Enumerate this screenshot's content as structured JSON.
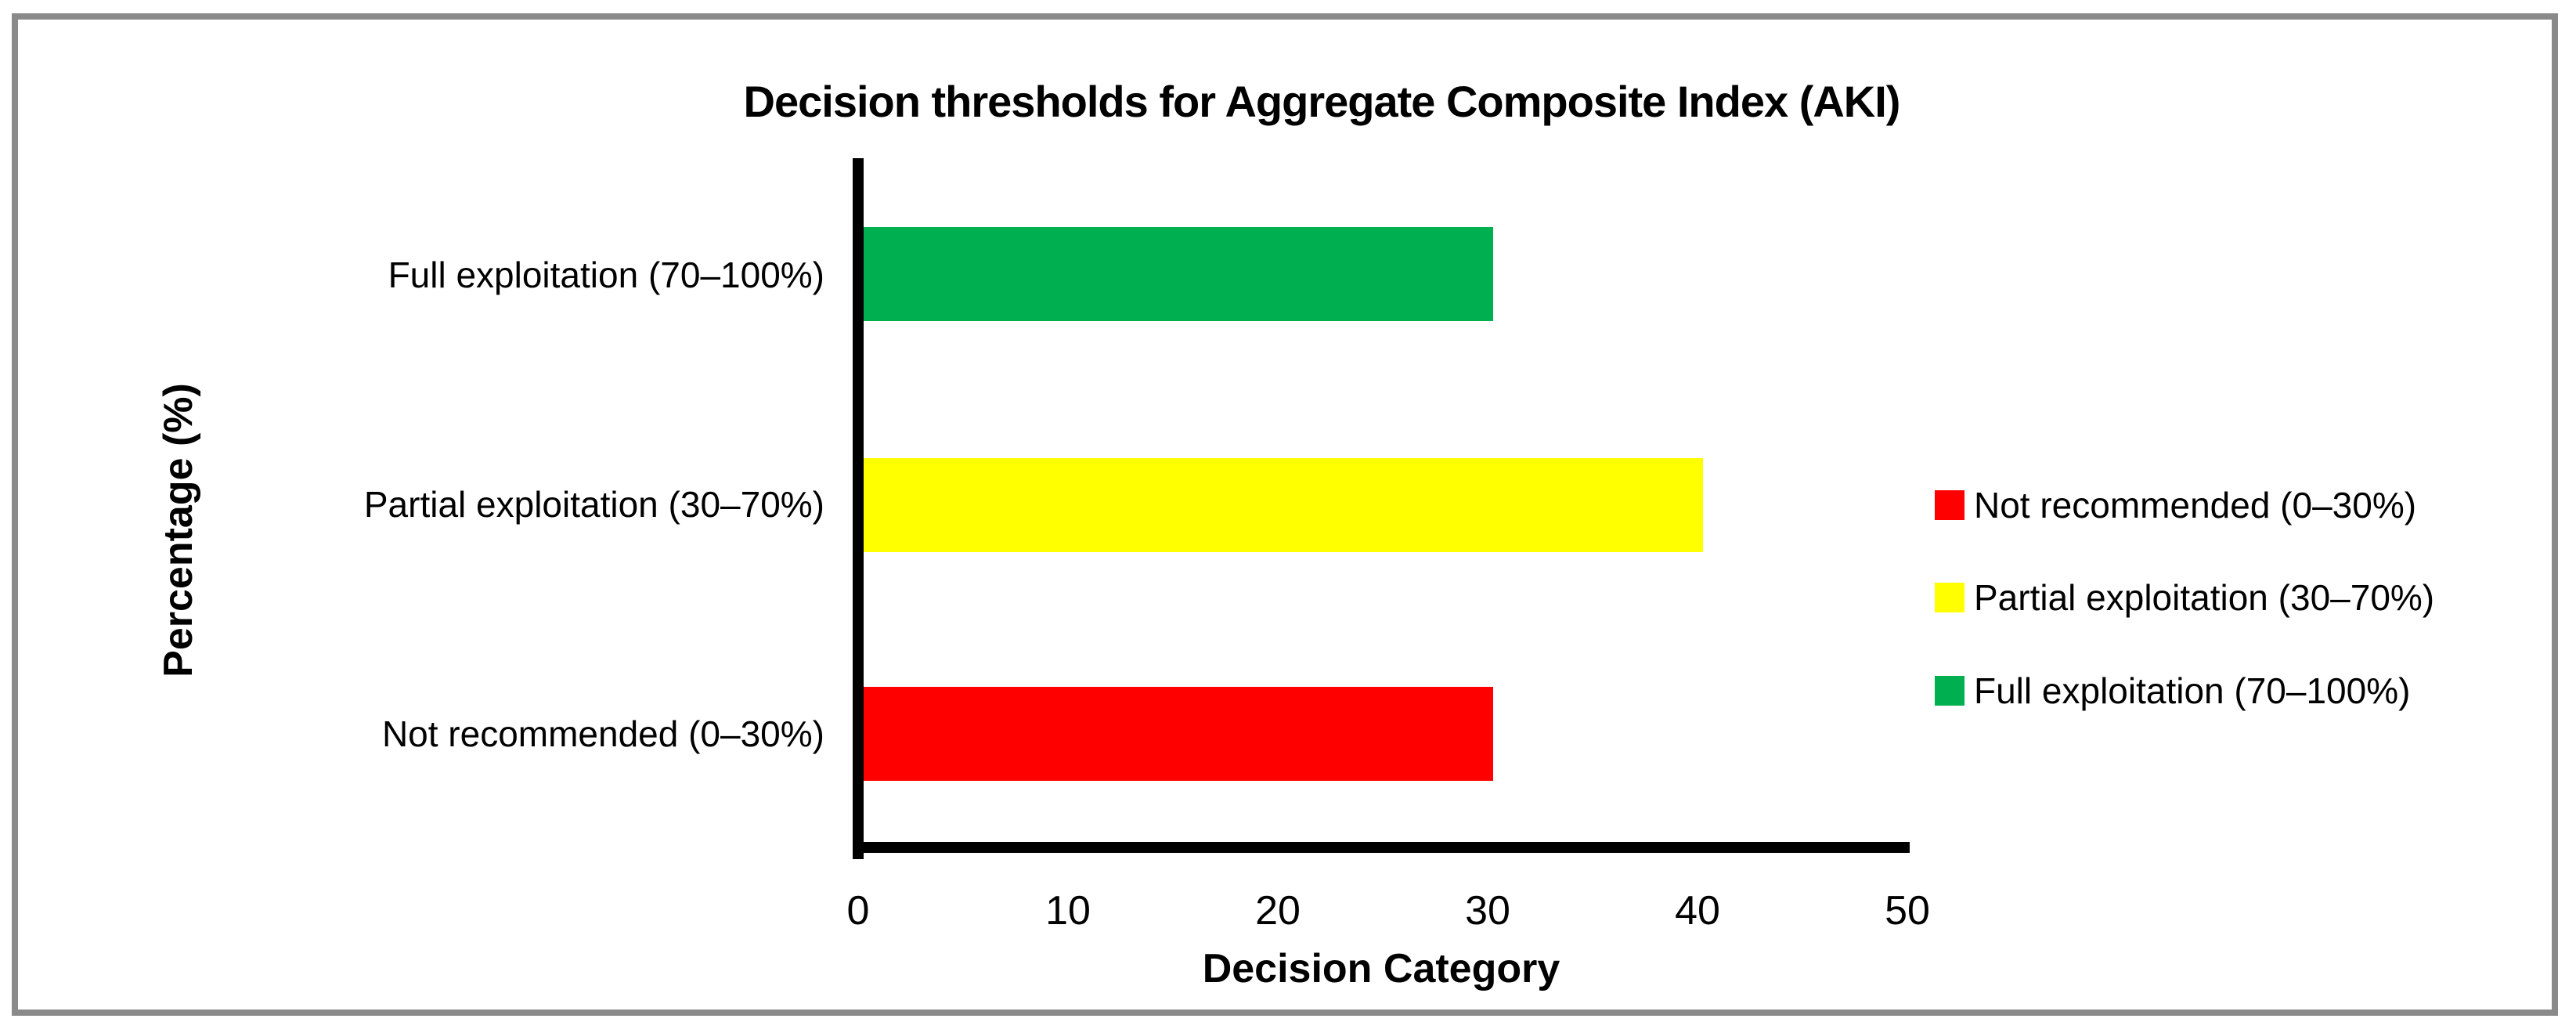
{
  "figure": {
    "title": "Decision thresholds for Aggregate Composite Index (AKI)",
    "x_axis_title": "Decision Category",
    "y_axis_title": "Percentage (%)"
  },
  "chart_data": {
    "type": "bar",
    "orientation": "horizontal",
    "title": "Decision thresholds for Aggregate Composite Index (AKI)",
    "categories": [
      "Full exploitation (70–100%)",
      "Partial exploitation (30–70%)",
      "Not recommended (0–30%)"
    ],
    "values": [
      30,
      40,
      30
    ],
    "colors": [
      "#00B050",
      "#FFFF00",
      "#FF0000"
    ],
    "xlabel": "Decision Category",
    "ylabel": "Percentage (%)",
    "xlim": [
      0,
      50
    ],
    "xticks": [
      0,
      10,
      20,
      30,
      40,
      50
    ],
    "grid": false,
    "legend": {
      "position": "right",
      "entries": [
        {
          "label": "Not recommended (0–30%)",
          "color": "#FF0000"
        },
        {
          "label": "Partial exploitation (30–70%)",
          "color": "#FFFF00"
        },
        {
          "label": "Full exploitation (70–100%)",
          "color": "#00B050"
        }
      ]
    },
    "style": {
      "axis_color": "#000000",
      "frame_border_color": "#8A8A8A",
      "background": "#FFFFFF"
    }
  }
}
